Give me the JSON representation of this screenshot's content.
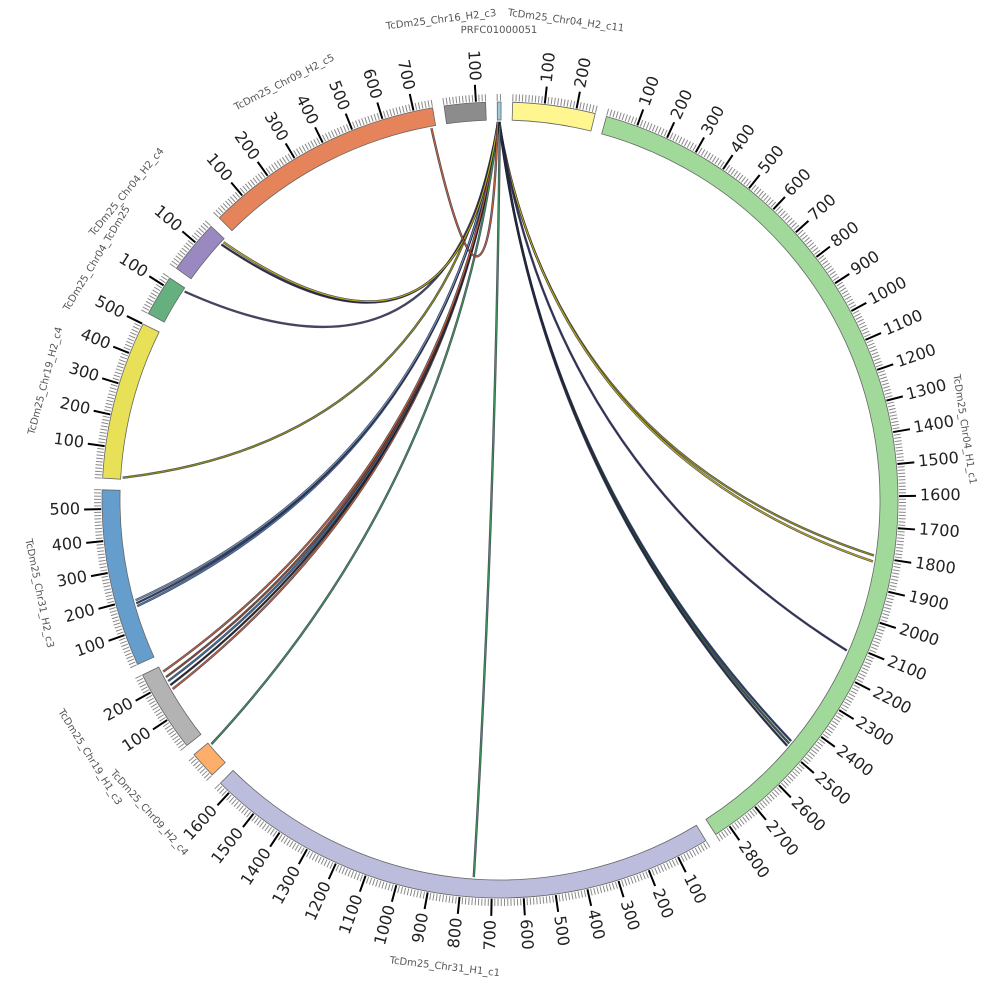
{
  "segments": [
    {
      "name": "PRFC01000051",
      "length": 12,
      "color": "#9ecae1"
    },
    {
      "name": "TcDm25_Chr04_H2_c11",
      "length": 260,
      "color": "#fff68f"
    },
    {
      "name": "TcDm25_Chr04_H1_c1",
      "length": 2850,
      "color": "#a1d99b"
    },
    {
      "name": "TcDm25_Chr31_H1_c1",
      "length": 1640,
      "color": "#bcbddc"
    },
    {
      "name": "TcDm25_Chr09_H2_c4",
      "length": 85,
      "color": "#fdae6b"
    },
    {
      "name": "TcDm25_Chr19_H1_c3",
      "length": 260,
      "color": "#b3b3b3"
    },
    {
      "name": "TcDm25_Chr31_H2_c3",
      "length": 560,
      "color": "#659ecd"
    },
    {
      "name": "TcDm25_Chr19_H2_c4",
      "length": 500,
      "color": "#e8e157"
    },
    {
      "name": "TcDm25_Chr04_TcDm25",
      "length": 130,
      "color": "#66b07f"
    },
    {
      "name": "TcDm25_Chr04_H2_c4",
      "length": 170,
      "color": "#9a88c0"
    },
    {
      "name": "TcDm25_Chr09_H2_c5",
      "length": 760,
      "color": "#e5845a"
    },
    {
      "name": "TcDm25_Chr16_H2_c3",
      "length": 130,
      "color": "#8c8c8c"
    }
  ],
  "tick_major_step": 100,
  "tick_minor_step": 10,
  "links": [
    {
      "from": [
        "PRFC01000051",
        4
      ],
      "to": [
        "TcDm25_Chr04_H1_c1",
        1795
      ],
      "color": "#8b8b1a"
    },
    {
      "from": [
        "PRFC01000051",
        5
      ],
      "to": [
        "TcDm25_Chr04_H1_c1",
        1815
      ],
      "color": "#b8a81c"
    },
    {
      "from": [
        "PRFC01000051",
        6
      ],
      "to": [
        "TcDm25_Chr04_H1_c1",
        2120
      ],
      "color": "#2b2f5e"
    },
    {
      "from": [
        "PRFC01000051",
        6
      ],
      "to": [
        "TcDm25_Chr04_H1_c1",
        2470
      ],
      "color": "#1f3b6e"
    },
    {
      "from": [
        "PRFC01000051",
        7
      ],
      "to": [
        "TcDm25_Chr04_H1_c1",
        2480
      ],
      "color": "#355e3b"
    },
    {
      "from": [
        "PRFC01000051",
        7
      ],
      "to": [
        "TcDm25_Chr04_H1_c1",
        2490
      ],
      "color": "#222a44"
    },
    {
      "from": [
        "PRFC01000051",
        8
      ],
      "to": [
        "TcDm25_Chr31_H1_c1",
        760
      ],
      "color": "#3f8f5a"
    },
    {
      "from": [
        "PRFC01000051",
        5
      ],
      "to": [
        "TcDm25_Chr31_H2_c3",
        175
      ],
      "color": "#4a78b0"
    },
    {
      "from": [
        "PRFC01000051",
        5
      ],
      "to": [
        "TcDm25_Chr31_H2_c3",
        185
      ],
      "color": "#2c3e60"
    },
    {
      "from": [
        "PRFC01000051",
        5
      ],
      "to": [
        "TcDm25_Chr31_H2_c3",
        195
      ],
      "color": "#6f8fb8"
    },
    {
      "from": [
        "PRFC01000051",
        4
      ],
      "to": [
        "TcDm25_Chr19_H1_c3",
        175
      ],
      "color": "#c0603a"
    },
    {
      "from": [
        "PRFC01000051",
        4
      ],
      "to": [
        "TcDm25_Chr19_H1_c3",
        190
      ],
      "color": "#222222"
    },
    {
      "from": [
        "PRFC01000051",
        4
      ],
      "to": [
        "TcDm25_Chr19_H1_c3",
        205
      ],
      "color": "#3b6e9e"
    },
    {
      "from": [
        "PRFC01000051",
        4
      ],
      "to": [
        "TcDm25_Chr19_H1_c3",
        220
      ],
      "color": "#8a4a2a"
    },
    {
      "from": [
        "PRFC01000051",
        4
      ],
      "to": [
        "TcDm25_Chr19_H1_c3",
        240
      ],
      "color": "#c0603a"
    },
    {
      "from": [
        "PRFC01000051",
        3
      ],
      "to": [
        "TcDm25_Chr09_H2_c4",
        75
      ],
      "color": "#3f8f5a"
    },
    {
      "from": [
        "PRFC01000051",
        3
      ],
      "to": [
        "TcDm25_Chr19_H2_c4",
        5
      ],
      "color": "#8b8b1a"
    },
    {
      "from": [
        "PRFC01000051",
        3
      ],
      "to": [
        "TcDm25_Chr04_TcDm25",
        120
      ],
      "color": "#444466"
    },
    {
      "from": [
        "PRFC01000051",
        2
      ],
      "to": [
        "TcDm25_Chr04_H2_c4",
        150
      ],
      "color": "#222a44"
    },
    {
      "from": [
        "PRFC01000051",
        2
      ],
      "to": [
        "TcDm25_Chr04_H2_c4",
        160
      ],
      "color": "#b8a81c"
    },
    {
      "from": [
        "TcDm25_Chr09_H2_c5",
        745
      ],
      "to": [
        "PRFC01000051",
        1
      ],
      "color": "#c0603a"
    }
  ]
}
